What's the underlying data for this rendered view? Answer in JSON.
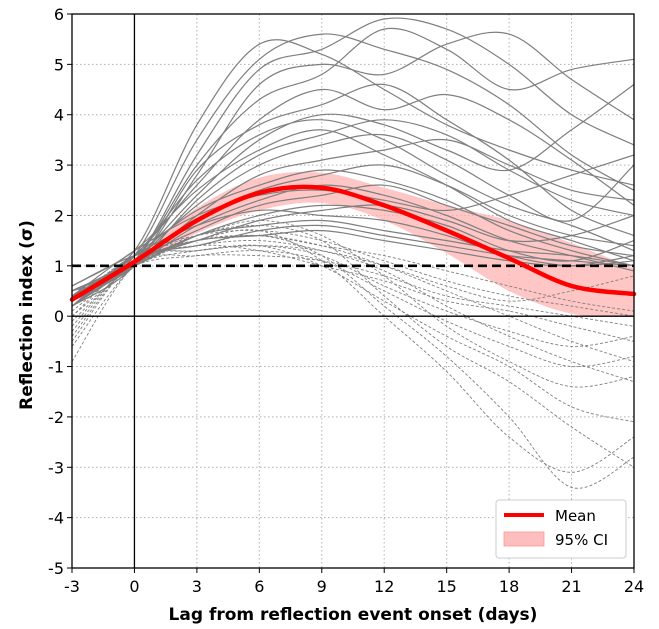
{
  "chart_data": {
    "type": "line",
    "xlabel": "Lag from reflection event onset (days)",
    "ylabel": "Reflection index (σ)",
    "xlim": [
      -3,
      24
    ],
    "ylim": [
      -5,
      6
    ],
    "xticks": [
      -3,
      0,
      3,
      6,
      9,
      12,
      15,
      18,
      21,
      24
    ],
    "xtick_labels": [
      "-3",
      "0",
      "3",
      "6",
      "9",
      "12",
      "15",
      "18",
      "21",
      "24"
    ],
    "yticks": [
      -5,
      -4,
      -3,
      -2,
      -1,
      0,
      1,
      2,
      3,
      4,
      5,
      6
    ],
    "ytick_labels": [
      "-5",
      "-4",
      "-3",
      "-2",
      "-1",
      "0",
      "1",
      "2",
      "3",
      "4",
      "5",
      "6"
    ],
    "grid": true,
    "threshold_y": 1,
    "zero_line_x": 0,
    "zero_line_y": 0,
    "legend_position": "lower-right",
    "legend": [
      {
        "label": "Mean",
        "kind": "line",
        "color": "#ff0000"
      },
      {
        "label": "95% CI",
        "kind": "band",
        "color": "#ffc0c0"
      }
    ],
    "colors": {
      "mean": "#ff0000",
      "ci": "#ffb3b3",
      "members": "#7f7f7f",
      "threshold": "#000000"
    },
    "x": [
      -3,
      0,
      3,
      6,
      9,
      12,
      15,
      18,
      21,
      24
    ],
    "mean": [
      0.33,
      1.08,
      1.9,
      2.45,
      2.55,
      2.2,
      1.7,
      1.15,
      0.6,
      0.44
    ],
    "ci_lower": [
      0.3,
      1.02,
      1.65,
      2.1,
      2.25,
      1.9,
      1.25,
      0.5,
      0.05,
      0.0
    ],
    "ci_upper": [
      0.4,
      1.15,
      2.15,
      2.75,
      2.85,
      2.55,
      2.2,
      1.9,
      1.45,
      0.95
    ],
    "members_solid": [
      [
        0.4,
        1.1,
        3.2,
        4.9,
        5.3,
        5.9,
        5.7,
        5.0,
        4.0,
        3.4
      ],
      [
        0.3,
        1.2,
        3.5,
        5.1,
        5.6,
        5.3,
        4.9,
        4.2,
        3.2,
        2.5
      ],
      [
        0.2,
        1.0,
        2.8,
        4.6,
        5.0,
        4.8,
        5.4,
        5.6,
        4.7,
        3.9
      ],
      [
        0.5,
        1.3,
        3.8,
        5.4,
        5.2,
        4.5,
        3.8,
        3.3,
        2.9,
        2.6
      ],
      [
        0.4,
        1.1,
        3.0,
        4.3,
        4.8,
        5.7,
        5.3,
        4.5,
        4.9,
        5.1
      ],
      [
        0.3,
        1.2,
        2.6,
        3.9,
        4.5,
        4.1,
        4.4,
        3.9,
        3.1,
        2.2
      ],
      [
        0.5,
        1.0,
        2.9,
        3.8,
        4.2,
        4.6,
        3.9,
        3.1,
        2.1,
        1.6
      ],
      [
        0.2,
        1.1,
        2.4,
        3.5,
        4.0,
        3.8,
        3.3,
        2.9,
        3.7,
        4.6
      ],
      [
        0.4,
        1.2,
        2.7,
        3.6,
        3.9,
        3.5,
        2.8,
        2.2,
        1.8,
        1.3
      ],
      [
        0.3,
        1.0,
        2.3,
        3.2,
        3.6,
        3.9,
        3.6,
        2.9,
        2.3,
        2.0
      ],
      [
        0.6,
        1.3,
        2.5,
        3.3,
        3.7,
        3.2,
        2.6,
        1.9,
        1.5,
        1.1
      ],
      [
        0.2,
        1.1,
        2.2,
        3.0,
        3.4,
        3.6,
        3.1,
        2.4,
        1.9,
        3.0
      ],
      [
        0.4,
        1.0,
        2.0,
        2.8,
        3.1,
        3.3,
        3.5,
        3.0,
        2.5,
        2.3
      ],
      [
        0.3,
        1.2,
        2.1,
        2.6,
        2.9,
        2.7,
        2.3,
        1.7,
        1.3,
        1.0
      ],
      [
        0.5,
        1.1,
        1.9,
        2.5,
        2.8,
        3.0,
        2.6,
        2.0,
        1.6,
        1.4
      ],
      [
        0.2,
        1.0,
        1.8,
        2.3,
        2.6,
        2.4,
        2.0,
        1.5,
        1.2,
        0.9
      ],
      [
        0.4,
        1.3,
        2.0,
        2.4,
        2.5,
        2.3,
        2.1,
        2.4,
        2.8,
        3.2
      ],
      [
        0.3,
        1.1,
        1.7,
        2.2,
        2.4,
        2.6,
        2.2,
        1.8,
        1.4,
        1.2
      ],
      [
        0.5,
        1.0,
        1.6,
        2.0,
        2.2,
        2.1,
        1.8,
        1.3,
        1.1,
        1.5
      ],
      [
        0.2,
        1.2,
        1.8,
        2.1,
        2.0,
        1.9,
        1.6,
        1.2,
        1.0,
        1.1
      ],
      [
        0.4,
        1.1,
        1.5,
        1.9,
        2.1,
        2.2,
        1.9,
        1.5,
        1.6,
        2.0
      ],
      [
        0.3,
        1.0,
        1.6,
        1.8,
        1.9,
        1.7,
        1.5,
        1.3,
        1.2,
        1.0
      ],
      [
        0.6,
        1.2,
        1.4,
        1.7,
        1.8,
        1.6,
        1.4,
        1.2,
        1.1,
        1.0
      ],
      [
        0.2,
        1.1,
        1.5,
        1.6,
        1.7,
        1.5,
        1.3,
        1.1,
        1.0,
        1.2
      ]
    ],
    "members_dashed": [
      [
        0.0,
        1.0,
        1.6,
        1.8,
        1.5,
        0.4,
        -0.6,
        -1.3,
        -2.2,
        -3.0
      ],
      [
        -0.3,
        1.1,
        1.4,
        1.6,
        1.2,
        0.2,
        -0.8,
        -2.0,
        -3.4,
        -2.8
      ],
      [
        -0.6,
        1.0,
        1.5,
        1.7,
        1.1,
        0.0,
        -1.1,
        -2.4,
        -3.1,
        -2.4
      ],
      [
        0.2,
        1.2,
        1.3,
        1.4,
        1.0,
        0.3,
        -0.4,
        -1.0,
        -1.8,
        -2.1
      ],
      [
        -0.2,
        1.1,
        1.6,
        1.9,
        1.6,
        0.8,
        -0.2,
        -0.9,
        -1.4,
        -1.2
      ],
      [
        0.1,
        1.0,
        1.2,
        1.3,
        1.1,
        0.5,
        -0.1,
        -0.6,
        -1.0,
        -0.8
      ],
      [
        -0.4,
        1.1,
        1.4,
        1.5,
        1.3,
        0.9,
        0.2,
        -0.4,
        -0.9,
        -1.3
      ],
      [
        0.3,
        1.2,
        1.5,
        1.6,
        1.4,
        1.0,
        0.5,
        0.0,
        -0.5,
        -0.9
      ],
      [
        -0.1,
        1.0,
        1.3,
        1.4,
        1.2,
        0.6,
        0.1,
        -0.3,
        -0.6,
        -0.4
      ],
      [
        0.0,
        1.1,
        1.4,
        1.3,
        1.0,
        0.7,
        0.3,
        0.1,
        -0.2,
        -0.5
      ],
      [
        -0.9,
        1.0,
        1.2,
        1.2,
        1.1,
        0.8,
        0.4,
        0.2,
        0.0,
        -0.2
      ],
      [
        0.2,
        1.2,
        1.6,
        1.7,
        1.5,
        1.1,
        0.7,
        0.4,
        0.2,
        0.0
      ],
      [
        -0.5,
        1.1,
        1.3,
        1.4,
        1.3,
        1.0,
        0.6,
        0.3,
        0.5,
        0.8
      ],
      [
        0.4,
        1.0,
        1.5,
        1.6,
        1.4,
        1.2,
        0.9,
        0.6,
        0.3,
        0.1
      ]
    ]
  }
}
